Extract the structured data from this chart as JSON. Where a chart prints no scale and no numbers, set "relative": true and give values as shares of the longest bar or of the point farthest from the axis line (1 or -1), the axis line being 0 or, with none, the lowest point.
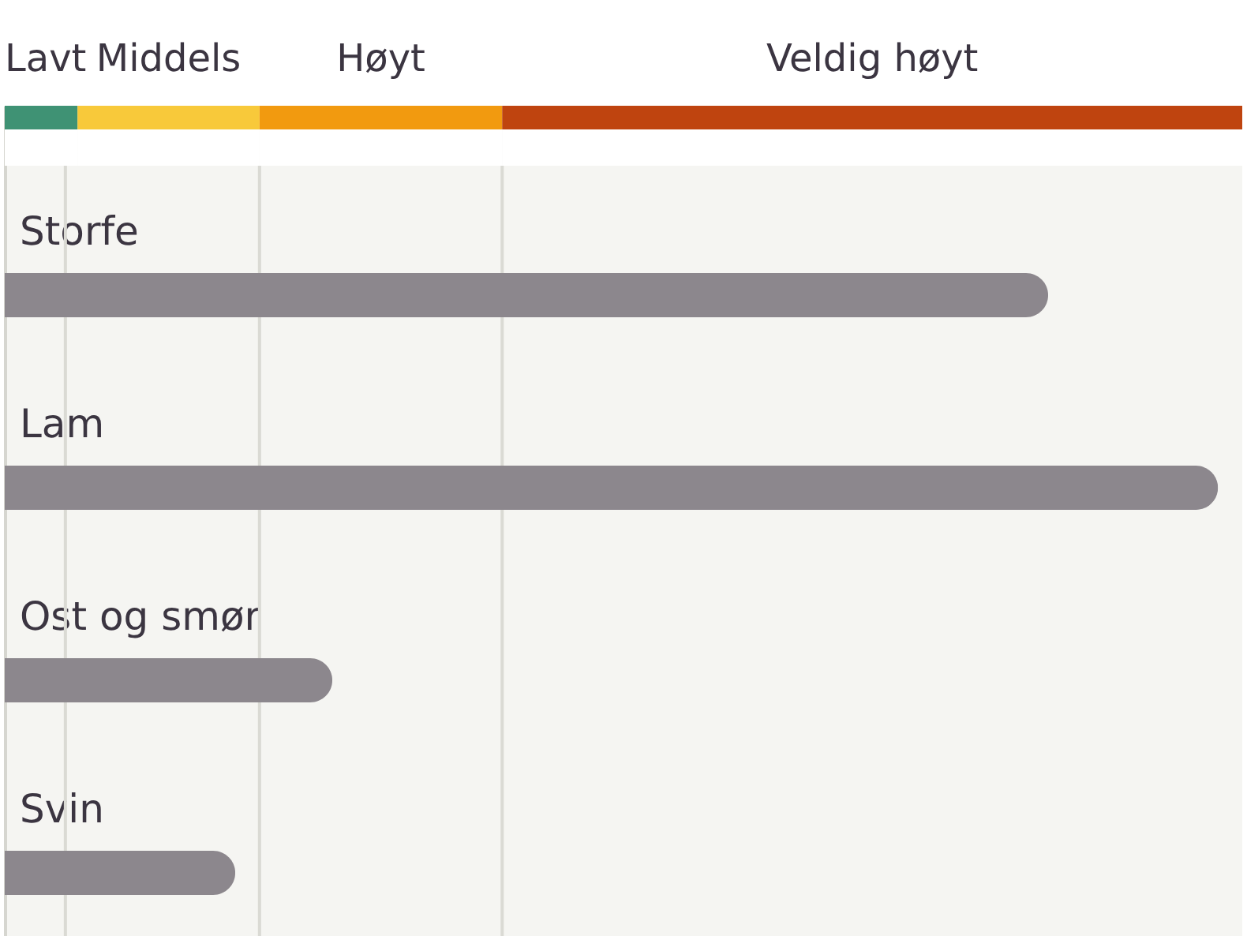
{
  "chart_data": {
    "type": "bar",
    "orientation": "horizontal",
    "relative": true,
    "categories": [
      "Storfe",
      "Lam",
      "Ost og smør",
      "Svin"
    ],
    "values": [
      0.86,
      1,
      0.27,
      0.19
    ],
    "color": "#8c878d",
    "bands": [
      {
        "axis": "x",
        "from": 0,
        "to": 0.06,
        "label": "Lavt",
        "color": "#3f9274"
      },
      {
        "axis": "x",
        "from": 0.06,
        "to": 0.21,
        "label": "Middels",
        "color": "#f8c93a"
      },
      {
        "axis": "x",
        "from": 0.21,
        "to": 0.41,
        "label": "Høyt",
        "color": "#f29a0f"
      },
      {
        "axis": "x",
        "from": 0.41,
        "to": 1.02,
        "label": "Veldig høyt",
        "color": "#bf440f"
      }
    ],
    "ref_lines": [
      {
        "axis": "x",
        "value": 0.05,
        "color": "#dadad4"
      },
      {
        "axis": "x",
        "value": 0.21,
        "color": "#dadad4"
      },
      {
        "axis": "x",
        "value": 0.41,
        "color": "#dadad4"
      }
    ]
  }
}
